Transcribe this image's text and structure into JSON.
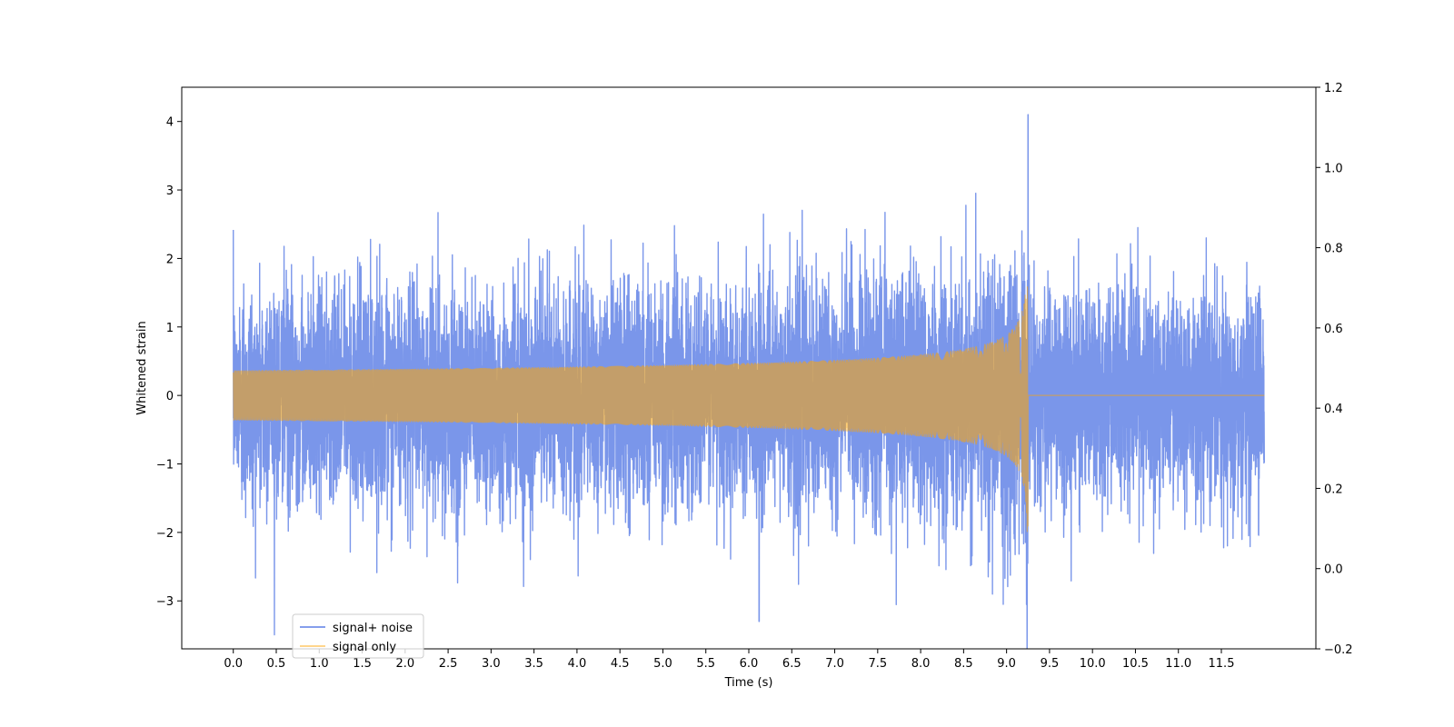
{
  "chart_data": {
    "type": "line",
    "xlabel": "Time (s)",
    "ylabel": "Whitened strain",
    "xlim": [
      -0.6,
      12.6
    ],
    "ylim": [
      -3.7,
      4.5
    ],
    "y2lim": [
      -0.2,
      1.2
    ],
    "x_ticks": [
      0.0,
      0.5,
      1.0,
      1.5,
      2.0,
      2.5,
      3.0,
      3.5,
      4.0,
      4.5,
      5.0,
      5.5,
      6.0,
      6.5,
      7.0,
      7.5,
      8.0,
      8.5,
      9.0,
      9.5,
      10.0,
      10.5,
      11.0,
      11.5
    ],
    "x_tick_labels": [
      "0.0",
      "0.5",
      "1.0",
      "1.5",
      "2.0",
      "2.5",
      "3.0",
      "3.5",
      "4.0",
      "4.5",
      "5.0",
      "5.5",
      "6.0",
      "6.5",
      "7.0",
      "7.5",
      "8.0",
      "8.5",
      "9.0",
      "9.5",
      "10.0",
      "10.5",
      "11.0",
      "11.5"
    ],
    "y_ticks": [
      -3,
      -2,
      -1,
      0,
      1,
      2,
      3,
      4
    ],
    "y_tick_labels": [
      "−3",
      "−2",
      "−1",
      "0",
      "1",
      "2",
      "3",
      "4"
    ],
    "y2_ticks": [
      -0.2,
      0.0,
      0.2,
      0.4,
      0.6,
      0.8,
      1.0,
      1.2
    ],
    "y2_tick_labels": [
      "−0.2",
      "0.0",
      "0.2",
      "0.4",
      "0.6",
      "0.8",
      "1.0",
      "1.2"
    ],
    "legend_position": "lower-left",
    "series": [
      {
        "name": "signal+ noise",
        "color": "#4169e1",
        "opacity": 0.7,
        "x_range": [
          0.0,
          12.0
        ],
        "noise_std": 0.75,
        "merger_time": 9.25,
        "peak_value": 4.1,
        "min_value": -3.3
      },
      {
        "name": "signal only",
        "color": "#ffa500",
        "opacity": 0.55,
        "x_range": [
          0.0,
          12.0
        ],
        "merger_time": 9.25,
        "peak_amplitude": 2.5,
        "waveform": "chirp"
      }
    ]
  }
}
